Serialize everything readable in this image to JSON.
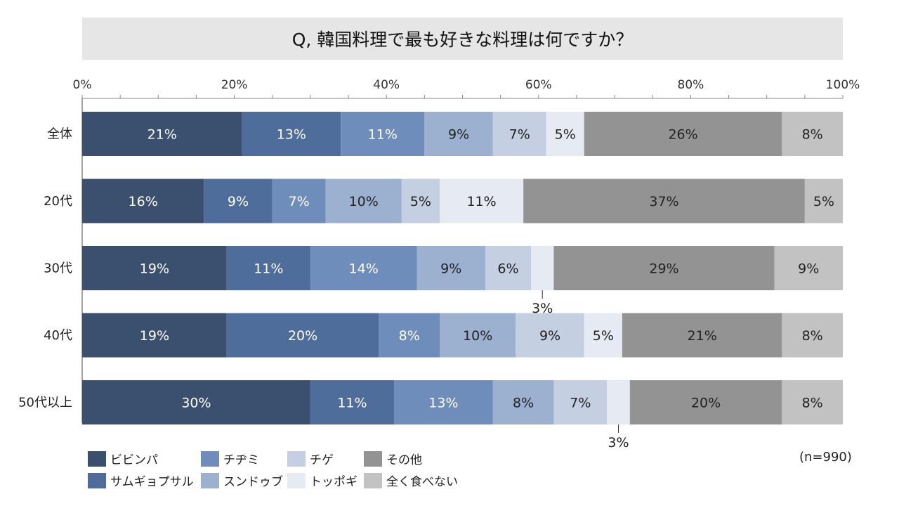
{
  "title": "Q, 韓国料理で最も好きな料理は何ですか？",
  "sample_note": "(n=990)",
  "chart_data": {
    "type": "bar",
    "orientation": "horizontal",
    "stacked": true,
    "percent_stacked": true,
    "xlim": [
      0,
      100
    ],
    "x_ticks": [
      "0%",
      "20%",
      "40%",
      "60%",
      "80%",
      "100%"
    ],
    "categories": [
      "全体",
      "20代",
      "30代",
      "40代",
      "50代以上"
    ],
    "series": [
      {
        "name": "ビビンパ",
        "color": "#3b4f6e",
        "values": [
          21,
          16,
          19,
          19,
          30
        ],
        "labels": [
          "21%",
          "16%",
          "19%",
          "19%",
          "30%"
        ]
      },
      {
        "name": "サムギョプサル",
        "color": "#4f6d9b",
        "values": [
          13,
          9,
          11,
          20,
          11
        ],
        "labels": [
          "13%",
          "9%",
          "11%",
          "20%",
          "11%"
        ]
      },
      {
        "name": "チヂミ",
        "color": "#6f8dba",
        "values": [
          11,
          7,
          14,
          8,
          13
        ],
        "labels": [
          "11%",
          "7%",
          "14%",
          "8%",
          "13%"
        ]
      },
      {
        "name": "スンドゥブ",
        "color": "#9cb0cf",
        "values": [
          9,
          10,
          9,
          10,
          8
        ],
        "labels": [
          "9%",
          "10%",
          "9%",
          "10%",
          "8%"
        ]
      },
      {
        "name": "チゲ",
        "color": "#c4cfe2",
        "values": [
          7,
          5,
          6,
          9,
          7
        ],
        "labels": [
          "7%",
          "5%",
          "6%",
          "9%",
          "7%"
        ]
      },
      {
        "name": "トッポギ",
        "color": "#e6ebf3",
        "values": [
          5,
          11,
          3,
          5,
          3
        ],
        "labels": [
          "5%",
          "11%",
          "3%",
          "5%",
          "3%"
        ]
      },
      {
        "name": "その他",
        "color": "#939393",
        "values": [
          26,
          37,
          29,
          21,
          20
        ],
        "labels": [
          "26%",
          "37%",
          "29%",
          "21%",
          "20%"
        ]
      },
      {
        "name": "全く食べない",
        "color": "#c2c2c2",
        "values": [
          8,
          5,
          9,
          8,
          8
        ],
        "labels": [
          "8%",
          "5%",
          "9%",
          "8%",
          "8%"
        ]
      }
    ],
    "outside_labels": [
      {
        "category_index": 2,
        "series_index": 5
      },
      {
        "category_index": 4,
        "series_index": 5
      }
    ],
    "legend": {
      "position": "bottom-left",
      "columns": 4
    }
  }
}
